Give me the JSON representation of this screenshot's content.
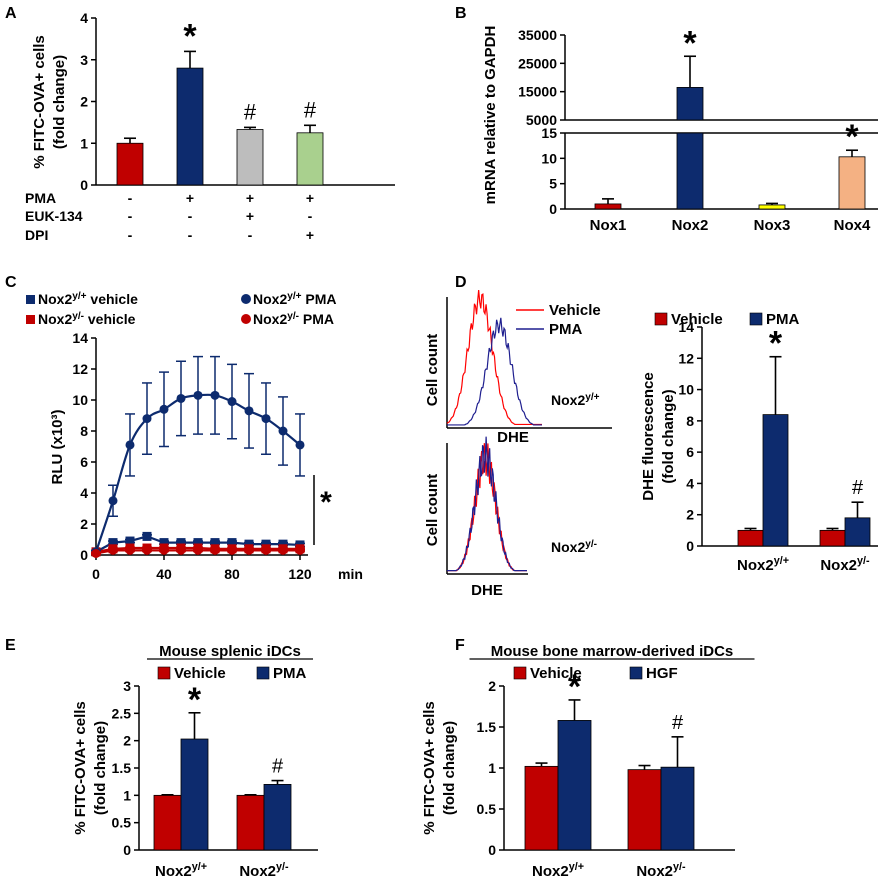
{
  "colors": {
    "red": "#c00000",
    "navy": "#0d2b6e",
    "gray": "#bdbdbd",
    "green": "#a9d08e",
    "yellow": "#ffff00",
    "peach": "#f4b183",
    "axis": "#000000",
    "hist_red": "#ff0000",
    "hist_blue": "#1f1f8f"
  },
  "chart_data": [
    {
      "panel": "A",
      "type": "bar",
      "ylabel": [
        "% FITC-OVA+ cells",
        "(fold change)"
      ],
      "ylim": [
        0,
        4
      ],
      "yticks": [
        0,
        1,
        2,
        3,
        4
      ],
      "values": [
        1.0,
        2.8,
        1.33,
        1.25
      ],
      "errors": [
        0.12,
        0.4,
        0.05,
        0.18
      ],
      "bar_colors": [
        "red",
        "navy",
        "gray",
        "green"
      ],
      "annotations": [
        "",
        "*",
        "#",
        "#"
      ],
      "row_labels": [
        "PMA",
        "EUK-134",
        "DPI"
      ],
      "rows": [
        [
          "-",
          "+",
          "+",
          "+"
        ],
        [
          "-",
          "-",
          "+",
          "-"
        ],
        [
          "-",
          "-",
          "-",
          "+"
        ]
      ]
    },
    {
      "panel": "B",
      "type": "bar",
      "ylabel": "mRNA relative to GAPDH",
      "categories": [
        "Nox1",
        "Nox2",
        "Nox3",
        "Nox4"
      ],
      "values": [
        1.0,
        16500,
        0.8,
        10.3
      ],
      "errors": [
        1.0,
        11000,
        0.3,
        1.3
      ],
      "bar_colors": [
        "red",
        "navy",
        "yellow",
        "peach"
      ],
      "annotations": [
        "",
        "*",
        "",
        "*"
      ],
      "lower_ylim": [
        0,
        15
      ],
      "lower_yticks": [
        0,
        5,
        10,
        15
      ],
      "upper_yticks": [
        5000,
        15000,
        25000,
        35000
      ],
      "upper_tick_labels": [
        "5000",
        "15000",
        "25000",
        "35000"
      ]
    },
    {
      "panel": "C",
      "type": "line",
      "ylabel": "RLU (x10³)",
      "xlabel": "min",
      "xlim": [
        0,
        120
      ],
      "xticks": [
        0,
        40,
        80,
        120
      ],
      "ylim": [
        0,
        14
      ],
      "yticks": [
        0,
        2,
        4,
        6,
        8,
        10,
        12,
        14
      ],
      "x": [
        0,
        10,
        20,
        30,
        40,
        50,
        60,
        70,
        80,
        90,
        100,
        110,
        120
      ],
      "series": [
        {
          "name": "Nox2y/+ vehicle",
          "legend_main": "Nox2",
          "legend_sup": "y/+",
          "legend_rest": " vehicle",
          "marker": "square",
          "color": "navy",
          "values": [
            0.2,
            0.8,
            0.9,
            1.2,
            0.8,
            0.8,
            0.8,
            0.8,
            0.8,
            0.7,
            0.7,
            0.7,
            0.65
          ],
          "errors": [
            0.1,
            0.1,
            0.1,
            0.1,
            0.1,
            0.1,
            0.1,
            0.1,
            0.1,
            0.1,
            0.1,
            0.1,
            0.1
          ]
        },
        {
          "name": "Nox2y/- vehicle",
          "legend_main": "Nox2",
          "legend_sup": "y/-",
          "legend_rest": " vehicle",
          "marker": "square",
          "color": "red",
          "values": [
            0.2,
            0.4,
            0.45,
            0.45,
            0.45,
            0.45,
            0.45,
            0.4,
            0.4,
            0.4,
            0.4,
            0.4,
            0.4
          ],
          "errors": [
            0.05,
            0.05,
            0.05,
            0.05,
            0.05,
            0.05,
            0.05,
            0.05,
            0.05,
            0.05,
            0.05,
            0.05,
            0.05
          ]
        },
        {
          "name": "Nox2y/+ PMA",
          "legend_main": "Nox2",
          "legend_sup": "y/+",
          "legend_rest": " PMA",
          "marker": "circle",
          "color": "navy",
          "curve": true,
          "values": [
            0.2,
            3.5,
            7.1,
            8.8,
            9.4,
            10.1,
            10.3,
            10.3,
            9.9,
            9.3,
            8.8,
            8.0,
            7.1
          ],
          "errors": [
            0.1,
            1.0,
            2.0,
            2.3,
            2.4,
            2.4,
            2.5,
            2.5,
            2.4,
            2.4,
            2.3,
            2.2,
            2.0
          ]
        },
        {
          "name": "Nox2y/- PMA",
          "legend_main": "Nox2",
          "legend_sup": "y/-",
          "legend_rest": " PMA",
          "marker": "circle",
          "color": "red",
          "values": [
            0.1,
            0.3,
            0.3,
            0.3,
            0.3,
            0.3,
            0.3,
            0.3,
            0.3,
            0.3,
            0.3,
            0.3,
            0.3
          ],
          "errors": [
            0.05,
            0.05,
            0.05,
            0.05,
            0.05,
            0.05,
            0.05,
            0.05,
            0.05,
            0.05,
            0.05,
            0.05,
            0.05
          ]
        }
      ],
      "annotation": "*"
    },
    {
      "panel": "D-histograms",
      "type": "histogram",
      "legend": [
        "Vehicle",
        "PMA"
      ],
      "ylabel": "Cell count",
      "xlabel": "DHE",
      "top": {
        "genotype_main": "Nox2",
        "genotype_sup": "y/+",
        "peak_vehicle": 0.35,
        "peak_pma": 0.55
      },
      "bottom": {
        "genotype_main": "Nox2",
        "genotype_sup": "y/-",
        "peak_vehicle": 0.48,
        "peak_pma": 0.48
      }
    },
    {
      "panel": "D-bars",
      "type": "bar",
      "ylabel": [
        "DHE fluorescence",
        "(fold change)"
      ],
      "ylim": [
        0,
        14
      ],
      "yticks": [
        0,
        2,
        4,
        6,
        8,
        10,
        12,
        14
      ],
      "groups": [
        {
          "main": "Nox2",
          "sup": "y/+"
        },
        {
          "main": "Nox2",
          "sup": "y/-"
        }
      ],
      "series": [
        {
          "name": "Vehicle",
          "color": "red",
          "values": [
            1.0,
            1.0
          ],
          "errors": [
            0.12,
            0.12
          ]
        },
        {
          "name": "PMA",
          "color": "navy",
          "values": [
            8.4,
            1.8
          ],
          "errors": [
            3.7,
            1.0
          ]
        }
      ],
      "annotations": [
        "*",
        "#"
      ]
    },
    {
      "panel": "E",
      "type": "bar",
      "title": "Mouse splenic iDCs",
      "ylabel": [
        "% FITC-OVA+ cells",
        "(fold change)"
      ],
      "ylim": [
        0,
        3
      ],
      "yticks": [
        0,
        0.5,
        1,
        1.5,
        2,
        2.5,
        3
      ],
      "ytick_labels": [
        "0",
        "0.5",
        "1",
        "1.5",
        "2",
        "2.5",
        "3"
      ],
      "groups": [
        {
          "main": "Nox2",
          "sup": "y/+"
        },
        {
          "main": "Nox2",
          "sup": "y/-"
        }
      ],
      "series": [
        {
          "name": "Vehicle",
          "color": "red",
          "values": [
            1.0,
            1.0
          ],
          "errors": [
            0.01,
            0.01
          ]
        },
        {
          "name": "PMA",
          "color": "navy",
          "values": [
            2.03,
            1.2
          ],
          "errors": [
            0.48,
            0.07
          ]
        }
      ],
      "annotations": [
        "*",
        "#"
      ]
    },
    {
      "panel": "F",
      "type": "bar",
      "title": "Mouse bone marrow-derived iDCs",
      "ylabel": [
        "% FITC-OVA+ cells",
        "(fold change)"
      ],
      "ylim": [
        0,
        2
      ],
      "yticks": [
        0,
        0.5,
        1,
        1.5,
        2
      ],
      "ytick_labels": [
        "0",
        "0.5",
        "1",
        "1.5",
        "2"
      ],
      "groups": [
        {
          "main": "Nox2",
          "sup": "y/+"
        },
        {
          "main": "Nox2",
          "sup": "y/-"
        }
      ],
      "series": [
        {
          "name": "Vehicle",
          "color": "red",
          "values": [
            1.02,
            0.98
          ],
          "errors": [
            0.04,
            0.05
          ]
        },
        {
          "name": "HGF",
          "color": "navy",
          "values": [
            1.58,
            1.01
          ],
          "errors": [
            0.25,
            0.37
          ]
        }
      ],
      "annotations": [
        "*",
        "#"
      ]
    }
  ],
  "panel_labels": [
    "A",
    "B",
    "C",
    "D",
    "E",
    "F"
  ]
}
